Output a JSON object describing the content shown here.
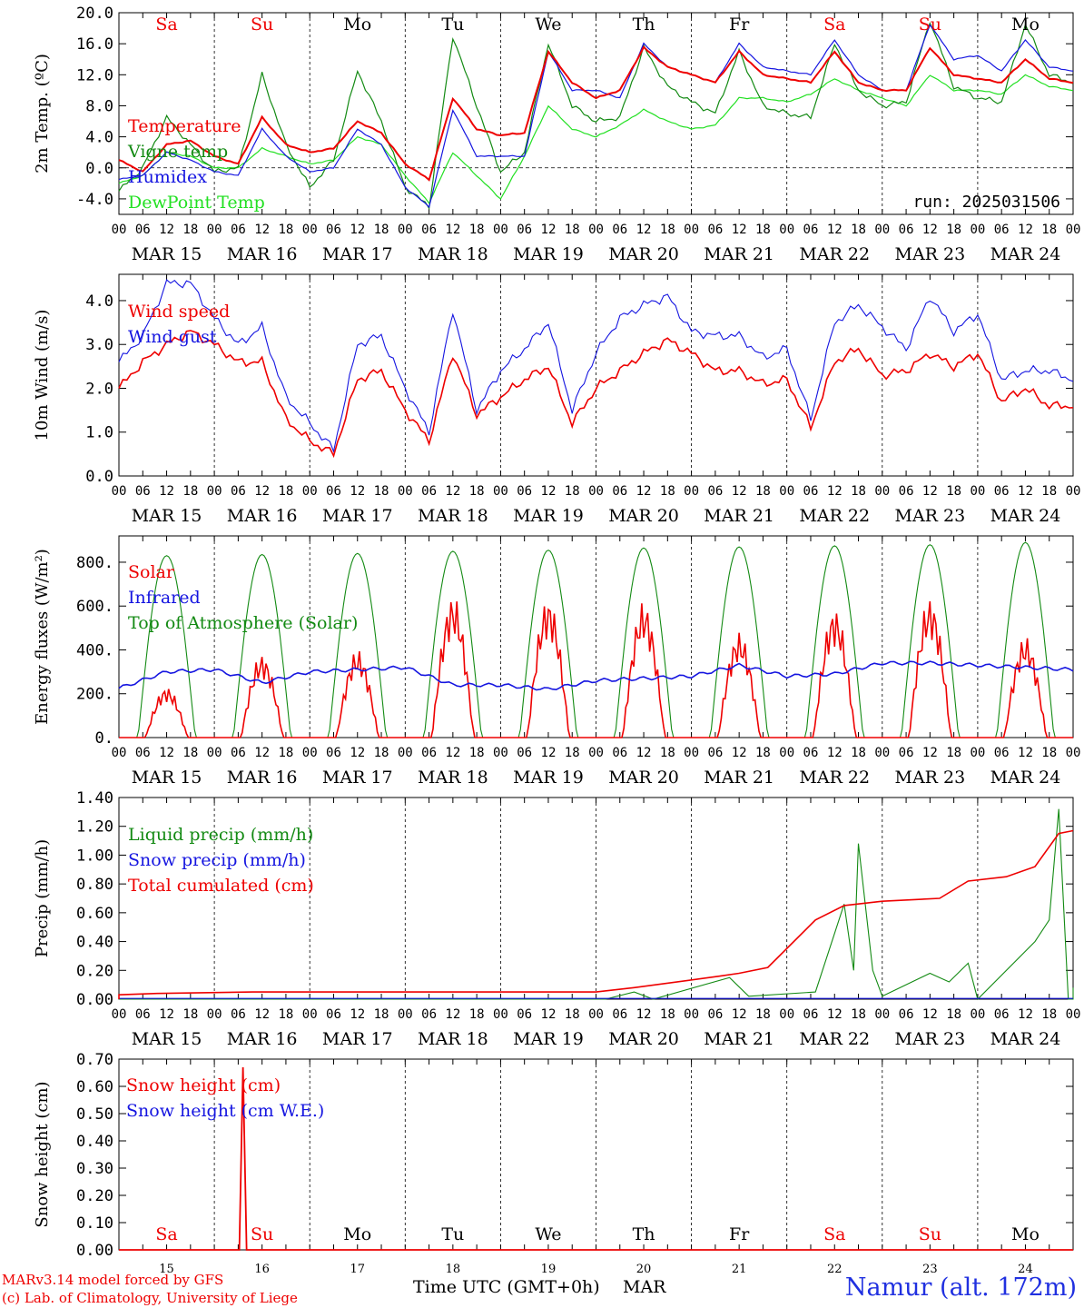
{
  "run_label": "run: 2025031506",
  "footer": {
    "model": "MARv3.14 model forced by GFS",
    "lab": "(c) Lab. of Climatology, University of Liege",
    "axis_title": "Time UTC (GMT+0h)",
    "month": "MAR",
    "station": "Namur (alt. 172m)"
  },
  "days": [
    "Sa",
    "Su",
    "Mo",
    "Tu",
    "We",
    "Th",
    "Fr",
    "Sa",
    "Su",
    "Mo"
  ],
  "day_colors": [
    "#ee0000",
    "#ee0000",
    "#000000",
    "#000000",
    "#000000",
    "#000000",
    "#000000",
    "#ee0000",
    "#ee0000",
    "#000000"
  ],
  "date_labels": [
    "MAR 15",
    "MAR 16",
    "MAR 17",
    "MAR 18",
    "MAR 19",
    "MAR 20",
    "MAR 21",
    "MAR 22",
    "MAR 23",
    "MAR 24"
  ],
  "day_numbers": [
    "15",
    "16",
    "17",
    "18",
    "19",
    "20",
    "21",
    "22",
    "23",
    "24"
  ],
  "hour_ticks": [
    "00",
    "06",
    "12",
    "18"
  ],
  "colors": {
    "red": "#ee0000",
    "green": "#138a13",
    "blue": "#1515e0",
    "lightgreen": "#22e022",
    "grid": "#000000"
  },
  "chart_data": [
    {
      "type": "line",
      "ylabel": "2m Temp. (ºC)",
      "ylim": [
        -6,
        20
      ],
      "yticks": [
        "20.0",
        "16.0",
        "12.0",
        "8.0",
        "4.0",
        "0.0",
        "-4.0"
      ],
      "x": [
        "MAR 15 00",
        "MAR 15 06",
        "MAR 15 12",
        "MAR 15 18",
        "MAR 16 00",
        "MAR 16 06",
        "MAR 16 12",
        "MAR 16 18",
        "MAR 17 00",
        "MAR 17 06",
        "MAR 17 12",
        "MAR 17 18",
        "MAR 18 00",
        "MAR 18 06",
        "MAR 18 12",
        "MAR 18 18",
        "MAR 19 00",
        "MAR 19 06",
        "MAR 19 12",
        "MAR 19 18",
        "MAR 20 00",
        "MAR 20 06",
        "MAR 20 12",
        "MAR 20 18",
        "MAR 21 00",
        "MAR 21 06",
        "MAR 21 12",
        "MAR 21 18",
        "MAR 22 00",
        "MAR 22 06",
        "MAR 22 12",
        "MAR 22 18",
        "MAR 23 00",
        "MAR 23 06",
        "MAR 23 12",
        "MAR 23 18",
        "MAR 24 00",
        "MAR 24 06",
        "MAR 24 12",
        "MAR 24 18",
        "MAR 25 00"
      ],
      "series": [
        {
          "name": "Temperature",
          "color": "red",
          "values": [
            1.0,
            -0.5,
            3.0,
            3.5,
            1.5,
            0.5,
            6.5,
            3.0,
            2.0,
            2.5,
            6.0,
            4.5,
            0.5,
            -1.5,
            9.0,
            5.0,
            4.2,
            4.5,
            15.0,
            11.0,
            9.0,
            10.0,
            15.5,
            13.0,
            12.0,
            11.0,
            15.0,
            12.0,
            11.5,
            11.0,
            15.0,
            11.0,
            10.0,
            10.0,
            15.5,
            12.0,
            11.5,
            11.0,
            14.0,
            11.5,
            11.0
          ]
        },
        {
          "name": "Vigne temp",
          "color": "green",
          "values": [
            -3.0,
            0.0,
            6.5,
            3.0,
            -0.5,
            0.0,
            12.0,
            3.0,
            -2.5,
            1.0,
            12.5,
            6.0,
            -2.5,
            -5.0,
            17.0,
            8.0,
            -0.5,
            2.0,
            16.0,
            8.0,
            6.0,
            6.5,
            15.5,
            10.5,
            8.5,
            7.0,
            15.0,
            8.0,
            7.0,
            6.5,
            16.0,
            10.0,
            8.0,
            8.5,
            19.0,
            10.5,
            9.0,
            8.5,
            18.5,
            12.0,
            11.0
          ]
        },
        {
          "name": "Humidex",
          "color": "blue",
          "values": [
            -1.5,
            -1.0,
            2.0,
            1.0,
            -0.5,
            -1.0,
            5.0,
            1.5,
            -0.5,
            0.0,
            5.0,
            3.0,
            -2.5,
            -5.0,
            7.5,
            1.5,
            1.5,
            1.5,
            15.0,
            10.0,
            10.0,
            9.0,
            16.0,
            13.0,
            12.0,
            11.0,
            16.0,
            13.0,
            12.5,
            12.0,
            16.5,
            12.0,
            10.0,
            10.0,
            18.5,
            14.0,
            14.5,
            12.5,
            16.5,
            13.0,
            12.5
          ]
        },
        {
          "name": "DewPoint Temp",
          "color": "lightgreen",
          "values": [
            -2.0,
            -1.0,
            2.0,
            1.5,
            0.0,
            0.0,
            2.5,
            1.5,
            0.5,
            1.0,
            4.0,
            3.0,
            -1.0,
            -4.5,
            2.0,
            -1.0,
            -4.0,
            1.5,
            8.0,
            5.0,
            4.0,
            5.5,
            7.5,
            6.0,
            5.0,
            5.5,
            9.0,
            9.0,
            8.5,
            9.5,
            11.5,
            10.0,
            9.0,
            8.0,
            12.0,
            10.0,
            10.0,
            9.5,
            12.0,
            10.5,
            10.0
          ]
        }
      ]
    },
    {
      "type": "line",
      "ylabel": "10m Wind (m/s)",
      "ylim": [
        0,
        4.6
      ],
      "yticks": [
        "4.0",
        "3.0",
        "2.0",
        "1.0",
        "0.0"
      ],
      "series": [
        {
          "name": "Wind speed",
          "color": "red",
          "values": [
            2.0,
            2.6,
            3.0,
            3.3,
            3.0,
            2.6,
            2.6,
            1.3,
            0.8,
            0.5,
            2.2,
            2.4,
            1.5,
            0.8,
            2.8,
            1.4,
            1.8,
            2.2,
            2.5,
            1.2,
            2.0,
            2.4,
            2.8,
            3.1,
            2.8,
            2.4,
            2.4,
            2.1,
            2.2,
            1.1,
            2.6,
            2.9,
            2.3,
            2.4,
            2.8,
            2.5,
            2.8,
            1.7,
            2.0,
            1.6,
            1.6
          ]
        },
        {
          "name": "Wind gust",
          "color": "blue",
          "values": [
            2.6,
            3.2,
            4.4,
            4.4,
            3.6,
            3.0,
            3.4,
            1.8,
            1.2,
            0.6,
            3.0,
            3.2,
            2.0,
            1.0,
            3.8,
            1.5,
            2.4,
            2.9,
            3.5,
            1.5,
            2.8,
            3.6,
            3.9,
            4.1,
            3.3,
            3.2,
            3.2,
            2.7,
            2.9,
            1.3,
            3.5,
            3.9,
            3.4,
            2.9,
            4.1,
            3.3,
            3.7,
            2.2,
            2.4,
            2.4,
            2.2
          ]
        }
      ]
    },
    {
      "type": "line",
      "ylabel": "Energy fluxes (W/m²)",
      "ylim": [
        0,
        920
      ],
      "yticks": [
        "800.",
        "600.",
        "400.",
        "200.",
        "0."
      ],
      "series": [
        {
          "name": "Solar",
          "color": "red",
          "peaks": [
            230,
            380,
            400,
            650,
            640,
            620,
            480,
            590,
            640,
            460
          ]
        },
        {
          "name": "Infrared",
          "color": "blue",
          "values": [
            225,
            300,
            310,
            250,
            300,
            310,
            320,
            240,
            240,
            220,
            260,
            270,
            280,
            330,
            280,
            290,
            340,
            340,
            330,
            320,
            310
          ]
        },
        {
          "name": "Top of Atmosphere (Solar)",
          "color": "green",
          "peaks": [
            830,
            835,
            840,
            850,
            855,
            865,
            870,
            875,
            880,
            890
          ]
        }
      ]
    },
    {
      "type": "line",
      "ylabel": "Precip (mm/h)",
      "ylim": [
        0,
        1.4
      ],
      "yticks": [
        "1.40",
        "1.20",
        "1.00",
        "0.80",
        "0.60",
        "0.40",
        "0.20",
        "0.00"
      ],
      "series": [
        {
          "name": "Liquid precip (mm/h)",
          "color": "green"
        },
        {
          "name": "Snow precip (mm/h)",
          "color": "blue"
        },
        {
          "name": "Total cumulated (cm)",
          "color": "red"
        }
      ]
    },
    {
      "type": "line",
      "ylabel": "Snow height (cm)",
      "ylim": [
        0,
        0.7
      ],
      "yticks": [
        "0.70",
        "0.60",
        "0.50",
        "0.40",
        "0.30",
        "0.20",
        "0.10",
        "0.00"
      ],
      "series": [
        {
          "name": "Snow height (cm)",
          "color": "red",
          "spike_day": 1.3,
          "spike_value": 0.67
        },
        {
          "name": "Snow height (cm W.E.)",
          "color": "blue"
        }
      ]
    }
  ]
}
